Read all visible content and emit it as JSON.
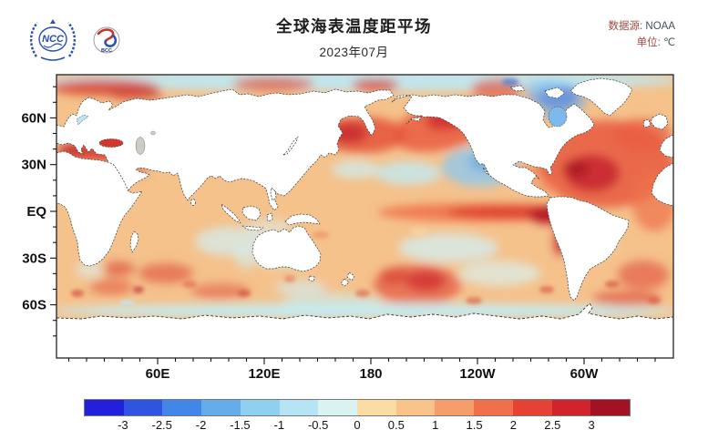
{
  "header": {
    "title": "全球海表温度距平场",
    "subtitle": "2023年07月",
    "source_key": "数据源:",
    "source_val": "NOAA",
    "unit_key": "单位:",
    "unit_val": "℃",
    "logo_ncc_text": "NCC",
    "logo_bcc_text": "BCC"
  },
  "chart_data": {
    "type": "heatmap",
    "title": "全球海表温度距平场",
    "subtitle": "2023年07月",
    "data_source": "NOAA",
    "unit": "℃",
    "projection": "equirectangular world map, longitudes ~0E eastward to ~360E, latitudes 90S–90N",
    "x_ticks": [
      {
        "label": "60E",
        "lon": 60
      },
      {
        "label": "120E",
        "lon": 120
      },
      {
        "label": "180",
        "lon": 180
      },
      {
        "label": "120W",
        "lon": 240
      },
      {
        "label": "60W",
        "lon": 300
      }
    ],
    "y_ticks": [
      {
        "label": "60N",
        "lat": 60
      },
      {
        "label": "30N",
        "lat": 30
      },
      {
        "label": "EQ",
        "lat": 0
      },
      {
        "label": "30S",
        "lat": -30
      },
      {
        "label": "60S",
        "lat": -60
      }
    ],
    "colorbar": {
      "tick_labels": [
        "-3",
        "-2.5",
        "-2",
        "-1.5",
        "-1",
        "-0.5",
        "0",
        "0.5",
        "1",
        "1.5",
        "2",
        "2.5",
        "3"
      ],
      "segment_colors": [
        "#2320dd",
        "#2f55e0",
        "#4286e8",
        "#66aceb",
        "#8fd0f0",
        "#b6e4f4",
        "#d9f3f2",
        "#fbdba4",
        "#f8c289",
        "#f59d69",
        "#f0704e",
        "#e54236",
        "#d0232c",
        "#a31223"
      ],
      "unit": "℃"
    },
    "notable_anomalies": [
      {
        "region": "equatorial eastern Pacific (El Niño warm tongue, strongest at South American coast)",
        "anomaly_c": "+1.5 to +3"
      },
      {
        "region": "North Atlantic",
        "anomaly_c": "+1.5 to +3"
      },
      {
        "region": "Mediterranean and Black Sea",
        "anomaly_c": "+2 to +3"
      },
      {
        "region": "northwest and northeast Pacific",
        "anomaly_c": "+1.5 to +2.5"
      },
      {
        "region": "subpolar Atlantic south of Greenland",
        "anomaly_c": "-1 to -2.5"
      },
      {
        "region": "central North Pacific patch",
        "anomaly_c": "-0.5 to -1.5"
      },
      {
        "region": "Southern Ocean fringe along Antarctica",
        "anomaly_c": "-0.5 to -1"
      },
      {
        "region": "most remaining global ocean",
        "anomaly_c": "+0.5 to +1"
      }
    ]
  }
}
